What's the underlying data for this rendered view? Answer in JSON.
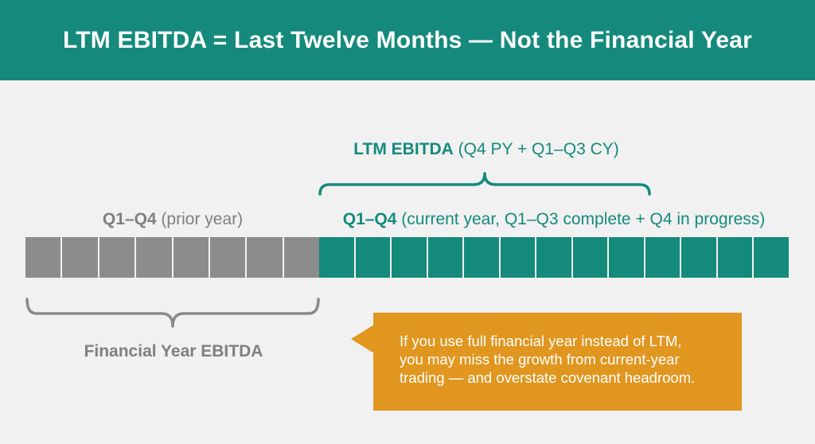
{
  "header": {
    "title": "LTM EBITDA = Last Twelve Months — Not the Financial Year"
  },
  "ltm": {
    "label_bold": "LTM EBITDA",
    "label_rest": " (Q4 PY + Q1–Q3 CY)"
  },
  "prior_year": {
    "label_bold": "Q1–Q4",
    "label_rest": " (prior year)",
    "segments": 8,
    "color": "#8c8c8c"
  },
  "current_year": {
    "label_bold": "Q1–Q4",
    "label_rest": " (current year, Q1–Q3 complete + Q4 in progress)",
    "segments": 13,
    "color": "#148a7b"
  },
  "financial_year": {
    "label": "Financial Year EBITDA"
  },
  "callout": {
    "lines": [
      "If you use full financial year instead of LTM,",
      "you may miss the growth from current-year",
      "trading — and overstate covenant headroom."
    ],
    "color": "#e0961f"
  },
  "colors": {
    "accent": "#158a7c",
    "muted": "#7f7f7f",
    "background": "#f1f1f1"
  }
}
